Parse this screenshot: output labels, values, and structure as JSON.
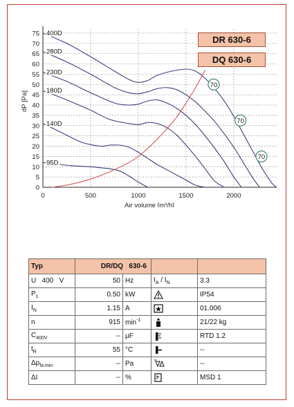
{
  "chart_data": {
    "type": "line",
    "xlabel": "Air volume [m³/h]",
    "ylabel": "dP [Pa]",
    "xlim": [
      0,
      2450
    ],
    "ylim": [
      0,
      77
    ],
    "x_ticks": [
      0,
      500,
      1000,
      1500,
      2000
    ],
    "y_ticks": [
      0,
      5,
      10,
      15,
      20,
      25,
      30,
      35,
      40,
      45,
      50,
      55,
      60,
      65,
      70,
      75
    ],
    "grid": true,
    "series": [
      {
        "name": "400D",
        "x": [
          0,
          250,
          500,
          750,
          900,
          1000,
          1100,
          1200,
          1350,
          1500,
          1600,
          1700,
          1800,
          1900,
          2000,
          2100,
          2200,
          2300,
          2400,
          2450
        ],
        "y": [
          75,
          70,
          63.5,
          56.5,
          52.5,
          51,
          52,
          54.5,
          56.5,
          57.5,
          56.5,
          53,
          48,
          42,
          34.5,
          26,
          17.5,
          9,
          2,
          0
        ]
      },
      {
        "name": "280D",
        "x": [
          0,
          250,
          500,
          750,
          900,
          1000,
          1100,
          1200,
          1300,
          1400,
          1500,
          1600,
          1700,
          1800,
          1900,
          2000,
          2100,
          2200,
          2270
        ],
        "y": [
          66,
          61,
          55,
          48.5,
          46,
          45.5,
          46.5,
          48,
          48.5,
          47.5,
          45,
          41.5,
          37,
          32,
          26,
          19.5,
          12,
          4.5,
          0
        ]
      },
      {
        "name": "230D",
        "x": [
          0,
          250,
          500,
          750,
          900,
          1000,
          1100,
          1200,
          1300,
          1400,
          1500,
          1600,
          1700,
          1800,
          1900,
          2000,
          2080
        ],
        "y": [
          56,
          51.5,
          46,
          41,
          40,
          40.5,
          42,
          42.5,
          41,
          38.5,
          35,
          30.5,
          25,
          19,
          12.5,
          5,
          0
        ]
      },
      {
        "name": "180D",
        "x": [
          0,
          250,
          500,
          700,
          900,
          1000,
          1100,
          1200,
          1300,
          1400,
          1500,
          1600,
          1700,
          1800,
          1900
        ],
        "y": [
          47,
          42.5,
          37.5,
          33,
          31,
          30.5,
          31.5,
          31,
          29,
          25.5,
          20.5,
          15,
          9,
          3,
          0
        ]
      },
      {
        "name": "140D",
        "x": [
          0,
          200,
          400,
          600,
          700,
          800,
          900,
          1000,
          1100,
          1200,
          1300,
          1400,
          1500,
          1600,
          1700
        ],
        "y": [
          31,
          26.5,
          22,
          20,
          20.5,
          20.5,
          19.5,
          17,
          14,
          11,
          8.5,
          6,
          3.5,
          1,
          0
        ]
      },
      {
        "name": "95D",
        "x": [
          0,
          100,
          300,
          500,
          600,
          700,
          800,
          900,
          1000,
          1100
        ],
        "y": [
          12,
          11.5,
          10.5,
          10,
          9.5,
          9,
          8,
          5.5,
          2.5,
          0
        ]
      }
    ],
    "efficiency_curve": {
      "x": [
        100,
        300,
        500,
        700,
        900,
        1000,
        1100,
        1200,
        1300,
        1400,
        1500,
        1600,
        1700
      ],
      "y": [
        0,
        1.5,
        4,
        7.5,
        12,
        15,
        19,
        23.5,
        28.5,
        34,
        41,
        48.5,
        57
      ]
    },
    "markers": [
      {
        "label": "70",
        "x": 1790,
        "y": 50
      },
      {
        "label": "70",
        "x": 2070,
        "y": 32.5
      },
      {
        "label": "70",
        "x": 2290,
        "y": 15
      }
    ],
    "legend_placement": "inline labels at left"
  },
  "models": [
    "DR 630-6",
    "DQ 630-6"
  ],
  "colors": {
    "curve": "#3a3f78",
    "efficiency": "#d04a4a",
    "grid": "#9a9a9a",
    "marker": "#2e7d5a",
    "badge": "#f4c2a8",
    "border": "#c0392b"
  },
  "table": {
    "header": {
      "col1": "Typ",
      "col2": "DR/DQ   630-6"
    },
    "rows": [
      {
        "l1": "U   400   V",
        "val": "50",
        "unit": "Hz",
        "icon": "current-ratio-icon",
        "sym": "I",
        "sub1": "A",
        "sym2": "I",
        "sub2": "N",
        "right": "3.3"
      },
      {
        "l1": "P",
        "l1_sub": "1",
        "val": "0.50",
        "unit": "kW",
        "icon": "warning-triangle-icon",
        "right": "IP54"
      },
      {
        "l1": "I",
        "l1_sub": "N",
        "val": "1.15",
        "unit": "A",
        "icon": "wiring-diagram-icon",
        "right": "01.006"
      },
      {
        "l1": "n",
        "val": "915",
        "unit": "min",
        "unit_sup": "-1",
        "icon": "weight-icon",
        "right": "21/22  kg"
      },
      {
        "l1": "C",
        "l1_sub": "400V",
        "val": "--",
        "unit": "µF",
        "icon": "thermal-protection-icon",
        "right": "RTD 1.2"
      },
      {
        "l1": "t",
        "l1_sub": "R",
        "val": "55",
        "unit": "°C",
        "icon": "connection-plug-icon",
        "right": "--"
      },
      {
        "l1": "Δp",
        "l1_sub": "fa min",
        "val": "--",
        "unit": "Pa",
        "icon": "filter-pressure-icon",
        "right": "--"
      },
      {
        "l1": "ΔI",
        "val": "--",
        "unit": "%",
        "icon": "motor-switch-icon",
        "right": "MSD 1"
      }
    ]
  }
}
